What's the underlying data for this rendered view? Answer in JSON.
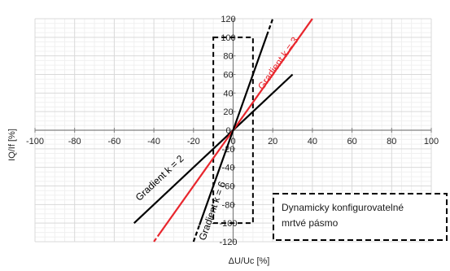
{
  "chart_data": {
    "type": "line",
    "title": "",
    "xlabel": "ΔU/Uc [%]",
    "ylabel": "IQ/If [%]",
    "xlim": [
      -100,
      100
    ],
    "ylim": [
      -120,
      120
    ],
    "x_ticks": [
      -100,
      -80,
      -60,
      -40,
      -20,
      0,
      20,
      40,
      60,
      80,
      100
    ],
    "y_ticks": [
      -120,
      -100,
      -80,
      -60,
      -40,
      -20,
      0,
      20,
      40,
      60,
      80,
      100,
      120
    ],
    "x_tick_labels": [
      "-100",
      "-80",
      "-60",
      "-40",
      "-20",
      "0",
      "20",
      "40",
      "60",
      "80",
      "100"
    ],
    "y_tick_labels": [
      "-120",
      "-100",
      "-80",
      "-60",
      "-40",
      "-20",
      "0",
      "20",
      "40",
      "60",
      "80",
      "100",
      "120"
    ],
    "grid": true,
    "series": [
      {
        "name": "Gradient k = 2",
        "color": "#000000",
        "style": "solid",
        "points": [
          [
            -50,
            -100
          ],
          [
            30,
            60
          ]
        ]
      },
      {
        "name": "Gradient k = 3",
        "color": "#e8262d",
        "style": "solid",
        "points": [
          [
            -37,
            -111
          ],
          [
            40,
            120
          ]
        ],
        "dashed_tail": [
          [
            -40,
            -120
          ],
          [
            -37,
            -111
          ]
        ]
      },
      {
        "name": "Gradient k = 6",
        "color": "#000000",
        "style": "solid",
        "points": [
          [
            -17,
            -102
          ],
          [
            17,
            102
          ]
        ],
        "dashed_tails": [
          [
            [
              -20,
              -120
            ],
            [
              -17,
              -102
            ]
          ],
          [
            [
              17,
              102
            ],
            [
              20,
              120
            ]
          ]
        ]
      }
    ],
    "deadband": {
      "color": "#000000",
      "style": "dashed",
      "x": [
        -10,
        10
      ],
      "y": [
        -100,
        100
      ]
    },
    "annotation": {
      "lines": [
        "Dynamicky konfigurovatelné",
        "mrtvé pásmo"
      ]
    }
  }
}
